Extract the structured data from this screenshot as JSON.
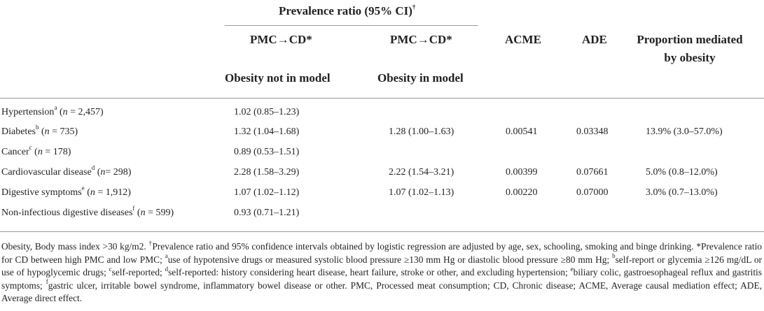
{
  "header": {
    "group_title": "Prevalence ratio (95% CI)",
    "group_title_mark": "†",
    "col_pmc_cd_1": "PMC→CD*",
    "col_obesity_not": "Obesity not in model",
    "col_pmc_cd_2": "PMC→CD*",
    "col_obesity_in": "Obesity in model",
    "col_acme": "ACME",
    "col_ade": "ADE",
    "col_prop_line1": "Proportion mediated",
    "col_prop_line2": "by obesity"
  },
  "rows": [
    {
      "label": "Hypertension",
      "sup": "a",
      "n_var": "n",
      "n_rest": " = 2,457)",
      "pr_not": "1.02 (0.85–1.23)",
      "pr_in": "",
      "acme": "",
      "ade": "",
      "prop": ""
    },
    {
      "label": "Diabetes",
      "sup": "b",
      "n_var": "n",
      "n_rest": " = 735)",
      "pr_not": "1.32 (1.04–1.68)",
      "pr_in": "1.28 (1.00–1.63)",
      "acme": "0.00541",
      "ade": "0.03348",
      "prop": "13.9% (3.0–57.0%)"
    },
    {
      "label": "Cancer",
      "sup": "c",
      "n_var": "n",
      "n_rest": " = 178)",
      "pr_not": "0.89 (0.53–1.51)",
      "pr_in": "",
      "acme": "",
      "ade": "",
      "prop": ""
    },
    {
      "label": "Cardiovascular disease",
      "sup": "d",
      "n_var": "n",
      "n_rest": "= 298)",
      "pr_not": "2.28 (1.58–3.29)",
      "pr_in": "2.22 (1.54–3.21)",
      "acme": "0.00399",
      "ade": "0.07661",
      "prop": "5.0% (0.8–12.0%)"
    },
    {
      "label": "Digestive symptoms",
      "sup": "e",
      "n_var": "n",
      "n_rest": " = 1,912)",
      "pr_not": "1.07 (1.02–1.12)",
      "pr_in": "1.07 (1.02–1.13)",
      "acme": "0.00220",
      "ade": "0.07000",
      "prop": "3.0% (0.7–13.0%)"
    },
    {
      "label": "Non-infectious digestive diseases",
      "sup": "f",
      "n_var": "n",
      "n_rest": " = 599)",
      "pr_not": "0.93 (0.71–1.21)",
      "pr_in": "",
      "acme": "",
      "ade": "",
      "prop": ""
    }
  ],
  "footnote": {
    "obesity_def": "Obesity, Body mass index >30 kg/m2. ",
    "dagger_mark": "†",
    "dagger_text": "Prevalence ratio and 95% confidence intervals obtained by logistic regression are adjusted by age, sex, schooling, smoking and binge drinking.",
    "star_text": "*Prevalence ratio for CD between high PMC and low PMC; ",
    "a_mark": "a",
    "a_text": "use of hypotensive drugs or measured systolic blood pressure ≥130 mm Hg or diastolic blood pressure ≥80 mm Hg; ",
    "b_mark": "b",
    "b_text": "self-report or glycemia ≥126 mg/dL or use of hypoglycemic drugs; ",
    "c_mark": "c",
    "c_text": "self-reported; ",
    "d_mark": "d",
    "d_text": "self-reported: history considering heart disease, heart failure, stroke or other, and excluding hypertension; ",
    "e_mark": "e",
    "e_text": "biliary colic, gastroesophageal reflux and gastritis symptoms; ",
    "f_mark": "f",
    "f_text": "gastric ulcer, irritable bowel syndrome, inflammatory bowel disease or other. PMC, Processed meat consumption; CD, Chronic disease; ACME, Average causal mediation effect; ADE, Average direct effect."
  }
}
